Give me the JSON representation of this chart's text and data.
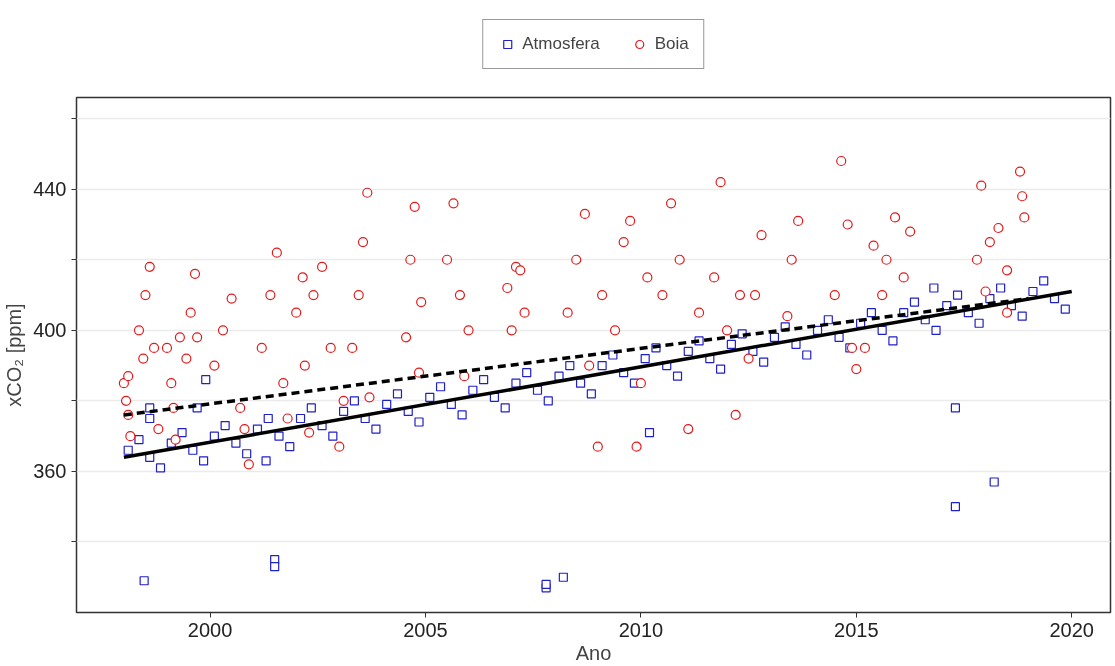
{
  "chart_data": {
    "type": "scatter",
    "xlabel": "Ano",
    "ylabel": "xCO₂ [ppm]",
    "xlim": [
      1996.9,
      2020.9
    ],
    "ylim": [
      320,
      466
    ],
    "xticks": [
      2000,
      2005,
      2010,
      2015,
      2020
    ],
    "yticks": [
      {
        "value": 340,
        "label": null
      },
      360,
      {
        "value": 380,
        "label": null
      },
      400,
      {
        "value": 420,
        "label": null
      },
      440,
      {
        "value": 460,
        "label": null
      }
    ],
    "grid": "y",
    "legend": "top",
    "series": [
      {
        "name": "Atmosfera",
        "marker": "square",
        "color": "#2020c8",
        "x": [
          1998.1,
          1998.35,
          1998.6,
          1998.85,
          1999.1,
          1999.35,
          1999.6,
          1999.85,
          2000.1,
          2000.35,
          2000.6,
          2000.85,
          2001.1,
          2001.35,
          2001.6,
          2001.85,
          2002.1,
          2002.35,
          2002.6,
          2002.85,
          2003.1,
          2003.35,
          2003.6,
          2003.85,
          2004.1,
          2004.35,
          2004.6,
          2004.85,
          2005.1,
          2005.35,
          2005.6,
          2005.85,
          2006.1,
          2006.35,
          2006.6,
          2006.85,
          2007.1,
          2007.35,
          2007.6,
          2007.85,
          2008.1,
          2008.35,
          2008.6,
          2008.85,
          2009.1,
          2009.35,
          2009.6,
          2009.85,
          2010.1,
          2010.35,
          2010.6,
          2010.85,
          2011.1,
          2011.35,
          2011.6,
          2011.85,
          2012.1,
          2012.35,
          2012.6,
          2012.85,
          2013.1,
          2013.35,
          2013.6,
          2013.85,
          2014.1,
          2014.35,
          2014.6,
          2014.85,
          2015.1,
          2015.35,
          2015.6,
          2015.85,
          2016.1,
          2016.35,
          2016.6,
          2016.85,
          2017.1,
          2017.35,
          2017.6,
          2017.85,
          2018.1,
          2018.35,
          2018.6,
          2018.85,
          2019.1,
          2019.35,
          2019.6,
          2019.85,
          1998.47,
          2001.5,
          2001.5,
          1999.9,
          1998.6,
          1998.6,
          1999.7,
          2001.3,
          2007.8,
          2007.8,
          2008.2,
          2010.2,
          2017.3,
          2017.3,
          2018.2,
          2016.8
        ],
        "values": [
          366,
          369,
          364,
          361,
          368,
          371,
          366,
          363,
          370,
          373,
          368,
          365,
          372,
          375,
          370,
          367,
          375,
          378,
          373,
          370,
          377,
          380,
          375,
          372,
          379,
          382,
          377,
          374,
          381,
          384,
          379,
          376,
          383,
          386,
          381,
          378,
          385,
          388,
          383,
          380,
          387,
          390,
          385,
          382,
          390,
          393,
          388,
          385,
          392,
          395,
          390,
          387,
          394,
          397,
          392,
          389,
          396,
          399,
          394,
          391,
          398,
          401,
          396,
          393,
          400,
          403,
          398,
          395,
          402,
          405,
          400,
          397,
          405,
          408,
          403,
          400,
          407,
          410,
          405,
          402,
          409,
          412,
          407,
          404,
          411,
          414,
          409,
          406,
          329,
          335,
          333,
          386,
          378,
          375,
          378,
          363,
          327,
          328,
          330,
          371,
          378,
          350,
          357,
          412
        ]
      },
      {
        "name": "Boia",
        "marker": "circle",
        "color": "#e31a1c",
        "x": [
          1998.0,
          1998.05,
          1998.1,
          1998.15,
          1998.1,
          1998.35,
          1998.5,
          1998.6,
          1998.7,
          1998.8,
          1998.45,
          1999.0,
          1999.1,
          1999.2,
          1999.3,
          1999.15,
          1999.45,
          1999.55,
          1999.65,
          1999.7,
          2000.1,
          2000.3,
          2000.5,
          2000.7,
          2000.9,
          2000.8,
          2001.2,
          2001.4,
          2001.55,
          2001.7,
          2001.8,
          2002.0,
          2002.15,
          2002.3,
          2002.2,
          2002.4,
          2002.6,
          2002.8,
          2003.0,
          2003.1,
          2003.3,
          2003.45,
          2003.55,
          2003.65,
          2003.7,
          2004.55,
          2004.65,
          2004.75,
          2004.85,
          2004.9,
          2005.5,
          2005.65,
          2005.8,
          2005.9,
          2006.0,
          2006.9,
          2007.0,
          2007.1,
          2007.2,
          2007.3,
          2008.3,
          2008.5,
          2008.7,
          2008.8,
          2009.0,
          2009.1,
          2009.4,
          2009.6,
          2009.75,
          2009.9,
          2010.0,
          2010.15,
          2010.5,
          2010.7,
          2010.9,
          2011.1,
          2011.35,
          2011.7,
          2011.85,
          2012.0,
          2012.2,
          2012.3,
          2012.5,
          2012.8,
          2012.65,
          2013.4,
          2013.5,
          2013.65,
          2014.5,
          2014.65,
          2014.8,
          2014.9,
          2015.0,
          2015.2,
          2015.4,
          2015.6,
          2015.7,
          2015.9,
          2016.1,
          2016.25,
          2017.8,
          2017.9,
          2018.0,
          2018.1,
          2018.3,
          2018.5,
          2018.5,
          2018.8,
          2018.85,
          2018.9
        ],
        "values": [
          385,
          380,
          387,
          370,
          376,
          400,
          410,
          418,
          395,
          372,
          392,
          395,
          385,
          369,
          398,
          378,
          392,
          405,
          416,
          398,
          390,
          400,
          409,
          378,
          362,
          372,
          395,
          410,
          422,
          385,
          375,
          405,
          415,
          371,
          390,
          410,
          418,
          395,
          367,
          380,
          395,
          410,
          425,
          439,
          381,
          398,
          420,
          435,
          388,
          408,
          420,
          436,
          410,
          387,
          400,
          412,
          400,
          418,
          417,
          405,
          405,
          420,
          433,
          390,
          367,
          410,
          400,
          425,
          431,
          367,
          385,
          415,
          410,
          436,
          420,
          372,
          405,
          415,
          442,
          400,
          376,
          410,
          392,
          427,
          410,
          404,
          420,
          431,
          410,
          448,
          430,
          395,
          389,
          395,
          424,
          410,
          420,
          432,
          415,
          428,
          420,
          441,
          411,
          425,
          429,
          417,
          405,
          445,
          438,
          432
        ]
      },
      {
        "type": "line",
        "line_style": "solid",
        "color": "#000000",
        "x": [
          1998.0,
          2020.0
        ],
        "values": [
          364,
          411
        ]
      },
      {
        "type": "line",
        "line_style": "dashed",
        "color": "#000000",
        "x": [
          1998.0,
          2019.0
        ],
        "values": [
          376,
          409
        ]
      }
    ]
  }
}
